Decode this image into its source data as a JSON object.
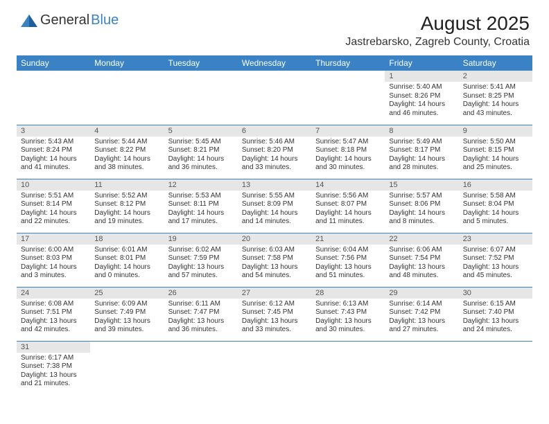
{
  "logo": {
    "general": "General",
    "blue": "Blue"
  },
  "title": "August 2025",
  "location": "Jastrebarsko, Zagreb County, Croatia",
  "colors": {
    "header_bg": "#3b82c4",
    "header_fg": "#ffffff",
    "daynum_bg": "#e6e6e6",
    "text": "#333333",
    "row_border": "#3b82c4"
  },
  "day_headers": [
    "Sunday",
    "Monday",
    "Tuesday",
    "Wednesday",
    "Thursday",
    "Friday",
    "Saturday"
  ],
  "weeks": [
    [
      null,
      null,
      null,
      null,
      null,
      {
        "n": "1",
        "sr": "Sunrise: 5:40 AM",
        "ss": "Sunset: 8:26 PM",
        "d1": "Daylight: 14 hours",
        "d2": "and 46 minutes."
      },
      {
        "n": "2",
        "sr": "Sunrise: 5:41 AM",
        "ss": "Sunset: 8:25 PM",
        "d1": "Daylight: 14 hours",
        "d2": "and 43 minutes."
      }
    ],
    [
      {
        "n": "3",
        "sr": "Sunrise: 5:43 AM",
        "ss": "Sunset: 8:24 PM",
        "d1": "Daylight: 14 hours",
        "d2": "and 41 minutes."
      },
      {
        "n": "4",
        "sr": "Sunrise: 5:44 AM",
        "ss": "Sunset: 8:22 PM",
        "d1": "Daylight: 14 hours",
        "d2": "and 38 minutes."
      },
      {
        "n": "5",
        "sr": "Sunrise: 5:45 AM",
        "ss": "Sunset: 8:21 PM",
        "d1": "Daylight: 14 hours",
        "d2": "and 36 minutes."
      },
      {
        "n": "6",
        "sr": "Sunrise: 5:46 AM",
        "ss": "Sunset: 8:20 PM",
        "d1": "Daylight: 14 hours",
        "d2": "and 33 minutes."
      },
      {
        "n": "7",
        "sr": "Sunrise: 5:47 AM",
        "ss": "Sunset: 8:18 PM",
        "d1": "Daylight: 14 hours",
        "d2": "and 30 minutes."
      },
      {
        "n": "8",
        "sr": "Sunrise: 5:49 AM",
        "ss": "Sunset: 8:17 PM",
        "d1": "Daylight: 14 hours",
        "d2": "and 28 minutes."
      },
      {
        "n": "9",
        "sr": "Sunrise: 5:50 AM",
        "ss": "Sunset: 8:15 PM",
        "d1": "Daylight: 14 hours",
        "d2": "and 25 minutes."
      }
    ],
    [
      {
        "n": "10",
        "sr": "Sunrise: 5:51 AM",
        "ss": "Sunset: 8:14 PM",
        "d1": "Daylight: 14 hours",
        "d2": "and 22 minutes."
      },
      {
        "n": "11",
        "sr": "Sunrise: 5:52 AM",
        "ss": "Sunset: 8:12 PM",
        "d1": "Daylight: 14 hours",
        "d2": "and 19 minutes."
      },
      {
        "n": "12",
        "sr": "Sunrise: 5:53 AM",
        "ss": "Sunset: 8:11 PM",
        "d1": "Daylight: 14 hours",
        "d2": "and 17 minutes."
      },
      {
        "n": "13",
        "sr": "Sunrise: 5:55 AM",
        "ss": "Sunset: 8:09 PM",
        "d1": "Daylight: 14 hours",
        "d2": "and 14 minutes."
      },
      {
        "n": "14",
        "sr": "Sunrise: 5:56 AM",
        "ss": "Sunset: 8:07 PM",
        "d1": "Daylight: 14 hours",
        "d2": "and 11 minutes."
      },
      {
        "n": "15",
        "sr": "Sunrise: 5:57 AM",
        "ss": "Sunset: 8:06 PM",
        "d1": "Daylight: 14 hours",
        "d2": "and 8 minutes."
      },
      {
        "n": "16",
        "sr": "Sunrise: 5:58 AM",
        "ss": "Sunset: 8:04 PM",
        "d1": "Daylight: 14 hours",
        "d2": "and 5 minutes."
      }
    ],
    [
      {
        "n": "17",
        "sr": "Sunrise: 6:00 AM",
        "ss": "Sunset: 8:03 PM",
        "d1": "Daylight: 14 hours",
        "d2": "and 3 minutes."
      },
      {
        "n": "18",
        "sr": "Sunrise: 6:01 AM",
        "ss": "Sunset: 8:01 PM",
        "d1": "Daylight: 14 hours",
        "d2": "and 0 minutes."
      },
      {
        "n": "19",
        "sr": "Sunrise: 6:02 AM",
        "ss": "Sunset: 7:59 PM",
        "d1": "Daylight: 13 hours",
        "d2": "and 57 minutes."
      },
      {
        "n": "20",
        "sr": "Sunrise: 6:03 AM",
        "ss": "Sunset: 7:58 PM",
        "d1": "Daylight: 13 hours",
        "d2": "and 54 minutes."
      },
      {
        "n": "21",
        "sr": "Sunrise: 6:04 AM",
        "ss": "Sunset: 7:56 PM",
        "d1": "Daylight: 13 hours",
        "d2": "and 51 minutes."
      },
      {
        "n": "22",
        "sr": "Sunrise: 6:06 AM",
        "ss": "Sunset: 7:54 PM",
        "d1": "Daylight: 13 hours",
        "d2": "and 48 minutes."
      },
      {
        "n": "23",
        "sr": "Sunrise: 6:07 AM",
        "ss": "Sunset: 7:52 PM",
        "d1": "Daylight: 13 hours",
        "d2": "and 45 minutes."
      }
    ],
    [
      {
        "n": "24",
        "sr": "Sunrise: 6:08 AM",
        "ss": "Sunset: 7:51 PM",
        "d1": "Daylight: 13 hours",
        "d2": "and 42 minutes."
      },
      {
        "n": "25",
        "sr": "Sunrise: 6:09 AM",
        "ss": "Sunset: 7:49 PM",
        "d1": "Daylight: 13 hours",
        "d2": "and 39 minutes."
      },
      {
        "n": "26",
        "sr": "Sunrise: 6:11 AM",
        "ss": "Sunset: 7:47 PM",
        "d1": "Daylight: 13 hours",
        "d2": "and 36 minutes."
      },
      {
        "n": "27",
        "sr": "Sunrise: 6:12 AM",
        "ss": "Sunset: 7:45 PM",
        "d1": "Daylight: 13 hours",
        "d2": "and 33 minutes."
      },
      {
        "n": "28",
        "sr": "Sunrise: 6:13 AM",
        "ss": "Sunset: 7:43 PM",
        "d1": "Daylight: 13 hours",
        "d2": "and 30 minutes."
      },
      {
        "n": "29",
        "sr": "Sunrise: 6:14 AM",
        "ss": "Sunset: 7:42 PM",
        "d1": "Daylight: 13 hours",
        "d2": "and 27 minutes."
      },
      {
        "n": "30",
        "sr": "Sunrise: 6:15 AM",
        "ss": "Sunset: 7:40 PM",
        "d1": "Daylight: 13 hours",
        "d2": "and 24 minutes."
      }
    ],
    [
      {
        "n": "31",
        "sr": "Sunrise: 6:17 AM",
        "ss": "Sunset: 7:38 PM",
        "d1": "Daylight: 13 hours",
        "d2": "and 21 minutes."
      },
      null,
      null,
      null,
      null,
      null,
      null
    ]
  ]
}
